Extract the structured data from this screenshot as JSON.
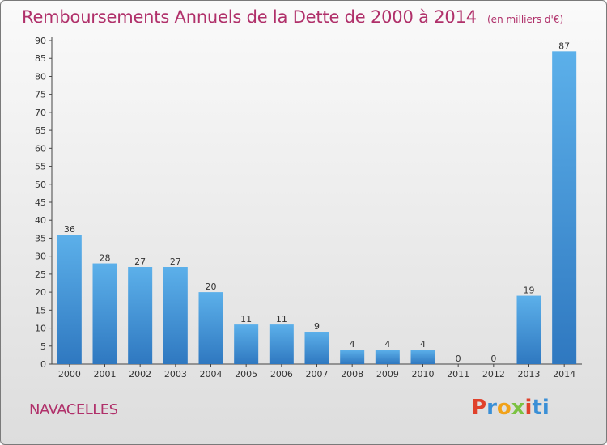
{
  "chart_data": {
    "type": "bar",
    "title": "Remboursements Annuels de la Dette de 2000 à 2014",
    "unit_note": "(en milliers d'€)",
    "categories": [
      "2000",
      "2001",
      "2002",
      "2003",
      "2004",
      "2005",
      "2006",
      "2007",
      "2008",
      "2009",
      "2010",
      "2011",
      "2012",
      "2013",
      "2014"
    ],
    "values": [
      36,
      28,
      27,
      27,
      20,
      11,
      11,
      9,
      4,
      4,
      4,
      0,
      0,
      19,
      87
    ],
    "ylim": [
      0,
      90
    ],
    "yticks": [
      0,
      5,
      10,
      15,
      20,
      25,
      30,
      35,
      40,
      45,
      50,
      55,
      60,
      65,
      70,
      75,
      80,
      85,
      90
    ],
    "grid": false,
    "bar_color": "#3d8fd4",
    "bar_color_light": "#5aaae6"
  },
  "footer": {
    "commune": "NAVACELLES",
    "logo_letters": [
      "P",
      "r",
      "o",
      "x",
      "i",
      "ti"
    ]
  }
}
